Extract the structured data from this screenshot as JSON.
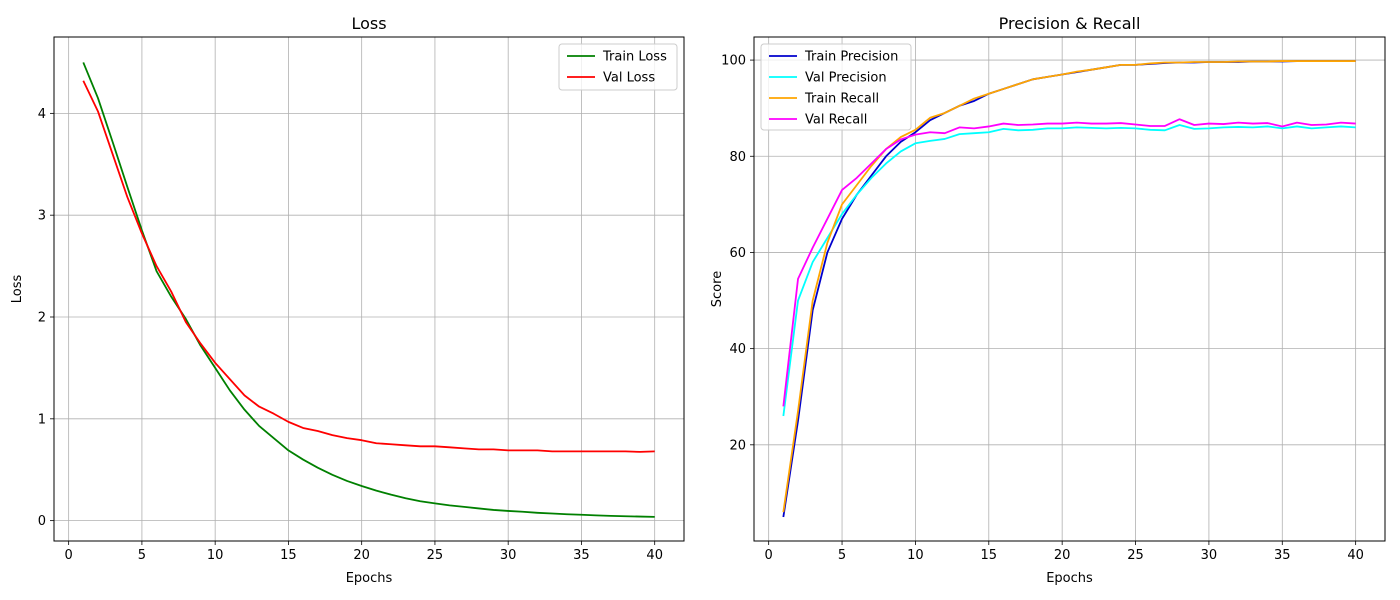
{
  "chart_data": [
    {
      "type": "line",
      "title": "Loss",
      "xlabel": "Epochs",
      "ylabel": "Loss",
      "xlim": [
        -1,
        42
      ],
      "ylim": [
        -0.2,
        4.75
      ],
      "xticks": [
        0,
        5,
        10,
        15,
        20,
        25,
        30,
        35,
        40
      ],
      "yticks": [
        0,
        1,
        2,
        3,
        4
      ],
      "grid": true,
      "legend": "upper-right",
      "x": [
        1,
        2,
        3,
        4,
        5,
        6,
        7,
        8,
        9,
        10,
        11,
        12,
        13,
        14,
        15,
        16,
        17,
        18,
        19,
        20,
        21,
        22,
        23,
        24,
        25,
        26,
        27,
        28,
        29,
        30,
        31,
        32,
        33,
        34,
        35,
        36,
        37,
        38,
        39,
        40
      ],
      "series": [
        {
          "name": "Train Loss",
          "color": "#008000",
          "values": [
            4.5,
            4.15,
            3.72,
            3.28,
            2.85,
            2.45,
            2.2,
            1.98,
            1.72,
            1.5,
            1.28,
            1.09,
            0.93,
            0.81,
            0.69,
            0.6,
            0.52,
            0.45,
            0.39,
            0.34,
            0.295,
            0.255,
            0.22,
            0.19,
            0.17,
            0.15,
            0.135,
            0.12,
            0.105,
            0.095,
            0.087,
            0.077,
            0.07,
            0.063,
            0.058,
            0.052,
            0.047,
            0.043,
            0.04,
            0.037
          ]
        },
        {
          "name": "Val Loss",
          "color": "#ff0000",
          "values": [
            4.32,
            4.02,
            3.6,
            3.18,
            2.82,
            2.5,
            2.25,
            1.95,
            1.74,
            1.55,
            1.39,
            1.23,
            1.12,
            1.05,
            0.97,
            0.91,
            0.88,
            0.84,
            0.81,
            0.79,
            0.76,
            0.75,
            0.74,
            0.73,
            0.73,
            0.72,
            0.71,
            0.7,
            0.7,
            0.69,
            0.69,
            0.69,
            0.68,
            0.68,
            0.68,
            0.68,
            0.68,
            0.68,
            0.675,
            0.68
          ]
        }
      ]
    },
    {
      "type": "line",
      "title": "Precision & Recall",
      "xlabel": "Epochs",
      "ylabel": "Score",
      "xlim": [
        -1,
        42
      ],
      "ylim": [
        0,
        104.8
      ],
      "xticks": [
        0,
        5,
        10,
        15,
        20,
        25,
        30,
        35,
        40
      ],
      "yticks": [
        20,
        40,
        60,
        80,
        100
      ],
      "grid": true,
      "legend": "upper-left",
      "x": [
        1,
        2,
        3,
        4,
        5,
        6,
        7,
        8,
        9,
        10,
        11,
        12,
        13,
        14,
        15,
        16,
        17,
        18,
        19,
        20,
        21,
        22,
        23,
        24,
        25,
        26,
        27,
        28,
        29,
        30,
        31,
        32,
        33,
        34,
        35,
        36,
        37,
        38,
        39,
        40
      ],
      "series": [
        {
          "name": "Train Precision",
          "color": "#0000cd",
          "values": [
            5,
            25,
            48,
            60,
            67,
            72,
            76,
            80,
            83,
            85,
            87.5,
            89,
            90.5,
            91.5,
            93,
            94,
            95,
            96,
            96.5,
            97,
            97.5,
            98,
            98.5,
            99,
            99,
            99.2,
            99.4,
            99.5,
            99.5,
            99.6,
            99.6,
            99.6,
            99.7,
            99.7,
            99.7,
            99.8,
            99.8,
            99.8,
            99.8,
            99.8
          ]
        },
        {
          "name": "Val Precision",
          "color": "#00ffff",
          "values": [
            26,
            50,
            58,
            63,
            68,
            72,
            75.5,
            78.5,
            81,
            82.7,
            83.2,
            83.6,
            84.6,
            84.8,
            85,
            85.7,
            85.4,
            85.5,
            85.8,
            85.8,
            86,
            85.9,
            85.8,
            85.9,
            85.8,
            85.5,
            85.4,
            86.5,
            85.7,
            85.8,
            86,
            86.1,
            86,
            86.2,
            85.8,
            86.2,
            85.8,
            86,
            86.2,
            86
          ]
        },
        {
          "name": "Train Recall",
          "color": "#ffa500",
          "values": [
            6,
            27,
            50,
            62,
            70,
            74,
            78,
            81.5,
            84,
            85.5,
            88,
            89,
            90.5,
            92,
            93,
            94,
            95,
            96,
            96.5,
            97,
            97.6,
            98,
            98.5,
            99,
            99,
            99.3,
            99.5,
            99.5,
            99.6,
            99.6,
            99.6,
            99.7,
            99.7,
            99.7,
            99.8,
            99.8,
            99.8,
            99.8,
            99.8,
            99.8
          ]
        },
        {
          "name": "Val Recall",
          "color": "#ff00ff",
          "values": [
            28,
            54.5,
            61,
            67,
            73,
            75.5,
            78.5,
            81.5,
            83.5,
            84.5,
            85,
            84.8,
            86,
            85.8,
            86.2,
            86.8,
            86.5,
            86.6,
            86.8,
            86.8,
            87,
            86.8,
            86.8,
            86.9,
            86.6,
            86.3,
            86.3,
            87.7,
            86.5,
            86.8,
            86.7,
            87,
            86.8,
            86.9,
            86.2,
            87,
            86.5,
            86.6,
            87,
            86.8
          ]
        }
      ]
    }
  ]
}
